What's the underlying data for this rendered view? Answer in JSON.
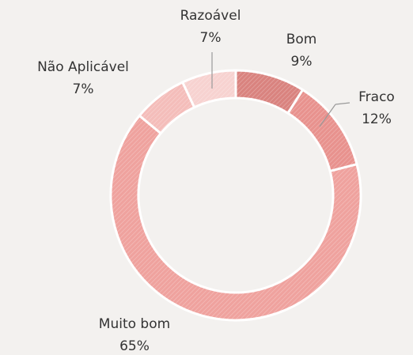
{
  "chart_data": {
    "type": "donut",
    "categories": [
      "Bom",
      "Fraco",
      "Muito bom",
      "Não Aplicável",
      "Razoável"
    ],
    "values": [
      9,
      12,
      65,
      7,
      7
    ],
    "value_labels": [
      "9%",
      "12%",
      "65%",
      "7%",
      "7%"
    ],
    "colors": [
      "#d9837f",
      "#e8928e",
      "#efa29e",
      "#f4bdba",
      "#f7d2d0"
    ]
  }
}
